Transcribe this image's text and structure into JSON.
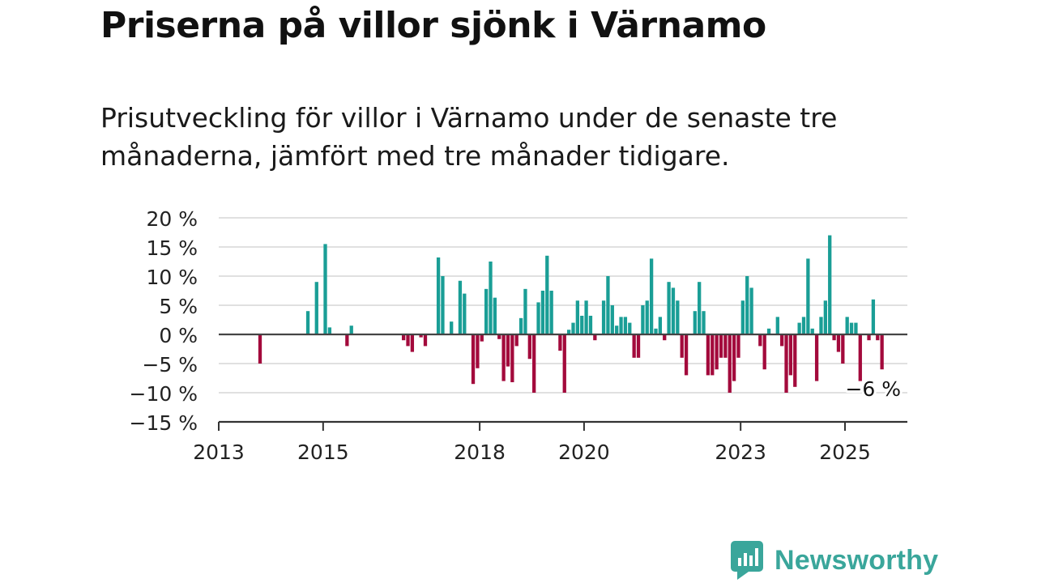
{
  "title": "Priserna på villor sjönk i Värnamo",
  "subtitle": "Prisutveckling för villor i Värnamo under de senaste tre månaderna, jämfört med tre månader tidigare.",
  "brand": {
    "name": "Newsworthy"
  },
  "colors": {
    "positive": "#1a9e96",
    "negative": "#a30a3c",
    "grid": "#d6d6d6",
    "axis": "#333333",
    "brand": "#3aa69b"
  },
  "chart_data": {
    "type": "bar",
    "title": "Priserna på villor sjönk i Värnamo",
    "subtitle": "Prisutveckling för villor i Värnamo under de senaste tre månaderna, jämfört med tre månader tidigare.",
    "x_unit": "month",
    "x_ticks": [
      "2013",
      "2015",
      "2018",
      "2020",
      "2023",
      "2025"
    ],
    "y_ticks": [
      "20 %",
      "15 %",
      "10 %",
      "5 %",
      "0 %",
      "−5 %",
      "−10 %",
      "−15 %"
    ],
    "ylim": [
      -15,
      20
    ],
    "grid": true,
    "end_label": "−6 %",
    "series": [
      {
        "values": [
          {
            "x": "2013-10",
            "y": -5
          },
          {
            "x": "2014-09",
            "y": 4
          },
          {
            "x": "2014-11",
            "y": 9
          },
          {
            "x": "2015-01",
            "y": 15.5
          },
          {
            "x": "2015-02",
            "y": 1.2
          },
          {
            "x": "2015-06",
            "y": -2
          },
          {
            "x": "2015-07",
            "y": 1.5
          },
          {
            "x": "2016-07",
            "y": -1
          },
          {
            "x": "2016-08",
            "y": -2
          },
          {
            "x": "2016-09",
            "y": -3
          },
          {
            "x": "2016-11",
            "y": -0.5
          },
          {
            "x": "2016-12",
            "y": -2
          },
          {
            "x": "2017-03",
            "y": 13.2
          },
          {
            "x": "2017-04",
            "y": 10
          },
          {
            "x": "2017-06",
            "y": 2.2
          },
          {
            "x": "2017-08",
            "y": 9.2
          },
          {
            "x": "2017-09",
            "y": 7
          },
          {
            "x": "2017-11",
            "y": -8.5
          },
          {
            "x": "2017-12",
            "y": -5.8
          },
          {
            "x": "2018-01",
            "y": -1.2
          },
          {
            "x": "2018-02",
            "y": 7.8
          },
          {
            "x": "2018-03",
            "y": 12.5
          },
          {
            "x": "2018-04",
            "y": 6.3
          },
          {
            "x": "2018-05",
            "y": -0.8
          },
          {
            "x": "2018-06",
            "y": -8
          },
          {
            "x": "2018-07",
            "y": -5.5
          },
          {
            "x": "2018-08",
            "y": -8.2
          },
          {
            "x": "2018-09",
            "y": -2
          },
          {
            "x": "2018-10",
            "y": 2.8
          },
          {
            "x": "2018-11",
            "y": 7.8
          },
          {
            "x": "2018-12",
            "y": -4.2
          },
          {
            "x": "2019-01",
            "y": -10
          },
          {
            "x": "2019-02",
            "y": 5.5
          },
          {
            "x": "2019-03",
            "y": 7.5
          },
          {
            "x": "2019-04",
            "y": 13.5
          },
          {
            "x": "2019-05",
            "y": 7.5
          },
          {
            "x": "2019-07",
            "y": -2.8
          },
          {
            "x": "2019-08",
            "y": -10
          },
          {
            "x": "2019-09",
            "y": 0.8
          },
          {
            "x": "2019-10",
            "y": 2
          },
          {
            "x": "2019-11",
            "y": 5.8
          },
          {
            "x": "2019-12",
            "y": 3.2
          },
          {
            "x": "2020-01",
            "y": 5.8
          },
          {
            "x": "2020-02",
            "y": 3.2
          },
          {
            "x": "2020-03",
            "y": -1
          },
          {
            "x": "2020-05",
            "y": 5.8
          },
          {
            "x": "2020-06",
            "y": 10
          },
          {
            "x": "2020-07",
            "y": 5
          },
          {
            "x": "2020-08",
            "y": 1.5
          },
          {
            "x": "2020-09",
            "y": 3
          },
          {
            "x": "2020-10",
            "y": 3
          },
          {
            "x": "2020-11",
            "y": 2
          },
          {
            "x": "2020-12",
            "y": -4
          },
          {
            "x": "2021-01",
            "y": -4
          },
          {
            "x": "2021-02",
            "y": 5
          },
          {
            "x": "2021-03",
            "y": 5.8
          },
          {
            "x": "2021-04",
            "y": 13
          },
          {
            "x": "2021-05",
            "y": 1
          },
          {
            "x": "2021-06",
            "y": 3
          },
          {
            "x": "2021-07",
            "y": -1
          },
          {
            "x": "2021-08",
            "y": 9
          },
          {
            "x": "2021-09",
            "y": 8
          },
          {
            "x": "2021-10",
            "y": 5.8
          },
          {
            "x": "2021-11",
            "y": -4
          },
          {
            "x": "2021-12",
            "y": -7
          },
          {
            "x": "2022-02",
            "y": 4
          },
          {
            "x": "2022-03",
            "y": 9
          },
          {
            "x": "2022-04",
            "y": 4
          },
          {
            "x": "2022-05",
            "y": -7
          },
          {
            "x": "2022-06",
            "y": -7
          },
          {
            "x": "2022-07",
            "y": -6
          },
          {
            "x": "2022-08",
            "y": -4
          },
          {
            "x": "2022-09",
            "y": -4
          },
          {
            "x": "2022-10",
            "y": -10
          },
          {
            "x": "2022-11",
            "y": -8
          },
          {
            "x": "2022-12",
            "y": -4
          },
          {
            "x": "2023-01",
            "y": 5.8
          },
          {
            "x": "2023-02",
            "y": 10
          },
          {
            "x": "2023-03",
            "y": 8
          },
          {
            "x": "2023-05",
            "y": -2
          },
          {
            "x": "2023-06",
            "y": -6
          },
          {
            "x": "2023-07",
            "y": 1
          },
          {
            "x": "2023-09",
            "y": 3
          },
          {
            "x": "2023-10",
            "y": -2
          },
          {
            "x": "2023-11",
            "y": -10
          },
          {
            "x": "2023-12",
            "y": -7
          },
          {
            "x": "2024-01",
            "y": -9
          },
          {
            "x": "2024-02",
            "y": 2
          },
          {
            "x": "2024-03",
            "y": 3
          },
          {
            "x": "2024-04",
            "y": 13
          },
          {
            "x": "2024-05",
            "y": 1
          },
          {
            "x": "2024-06",
            "y": -8
          },
          {
            "x": "2024-07",
            "y": 3
          },
          {
            "x": "2024-08",
            "y": 5.8
          },
          {
            "x": "2024-09",
            "y": 17
          },
          {
            "x": "2024-10",
            "y": -1
          },
          {
            "x": "2024-11",
            "y": -3
          },
          {
            "x": "2024-12",
            "y": -5
          },
          {
            "x": "2025-01",
            "y": 3
          },
          {
            "x": "2025-02",
            "y": 2
          },
          {
            "x": "2025-03",
            "y": 2
          },
          {
            "x": "2025-04",
            "y": -8
          },
          {
            "x": "2025-06",
            "y": -1
          },
          {
            "x": "2025-07",
            "y": 6
          },
          {
            "x": "2025-08",
            "y": -1
          },
          {
            "x": "2025-09",
            "y": -6
          }
        ]
      }
    ]
  }
}
